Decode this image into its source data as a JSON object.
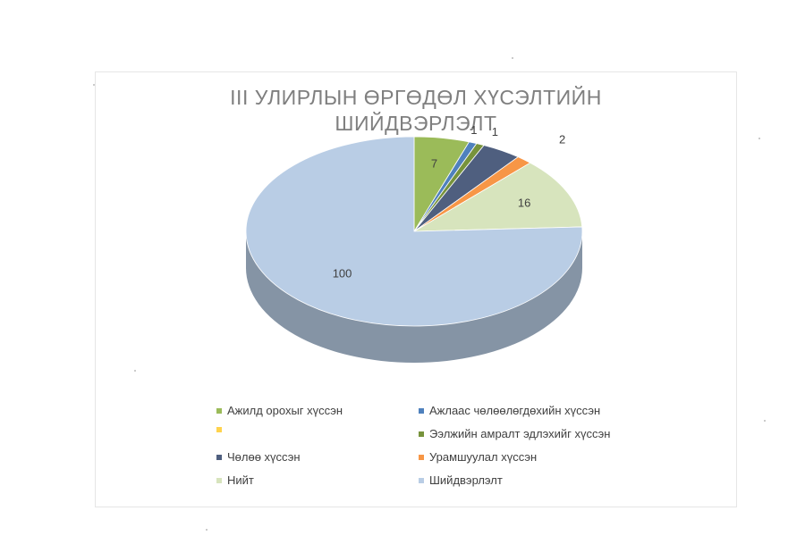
{
  "chart_data": {
    "type": "pie",
    "title": "III УЛИРЛЫН ӨРГӨДӨЛ ХҮСЭЛТИЙН ШИЙДВЭРЛЭЛТ",
    "title_lines": [
      "III УЛИРЛЫН ӨРГӨДӨЛ ХҮСЭЛТИЙН",
      "ШИЙДВЭРЛЭЛТ"
    ],
    "slices": [
      {
        "label": "Ажилд орохыг хүссэн",
        "value": 7,
        "color": "#9bbb59",
        "value_label": "7"
      },
      {
        "label": "Ажлаас чөлөөлөгдөхийн хүссэн",
        "value": 1,
        "color": "#4f81bd",
        "value_label": "1"
      },
      {
        "label": "Ээлжийн амралт эдлэхийг хүссэн",
        "value": 1,
        "color": "#77933c",
        "value_label": "1"
      },
      {
        "label": "Чөлөө хүссэн",
        "value": 5,
        "color": "#4f5f7f",
        "value_label": ""
      },
      {
        "label": "Урамшуулал хүссэн",
        "value": 2,
        "color": "#f79646",
        "value_label": "2"
      },
      {
        "label": "Нийт",
        "value": 16,
        "color": "#d7e4bd",
        "value_label": "16"
      },
      {
        "label": "Шийдвэрлэлт",
        "value": 100,
        "color": "#b9cde5",
        "value_label": "100"
      }
    ],
    "legend_position": "bottom",
    "chart_style": "3d"
  },
  "legend": [
    {
      "label": "Ажилд орохыг хүссэн",
      "color": "#9bbb59"
    },
    {
      "label": "Ажлаас чөлөөлөгдөхийн хүссэн",
      "color": "#4f81bd"
    },
    {
      "label": "",
      "color": "#ffd34d"
    },
    {
      "label": "Ээлжийн амралт эдлэхийг хүссэн",
      "color": "#77933c"
    },
    {
      "label": "Чөлөө хүссэн",
      "color": "#4f5f7f"
    },
    {
      "label": "Урамшуулал хүссэн",
      "color": "#f79646"
    },
    {
      "label": "Нийт",
      "color": "#d7e4bd"
    },
    {
      "label": "Шийдвэрлэлт",
      "color": "#b9cde5"
    }
  ]
}
